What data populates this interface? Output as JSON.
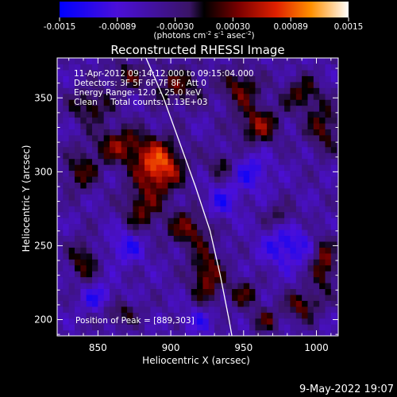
{
  "chart_data": {
    "type": "heatmap",
    "title": "Reconstructed RHESSI Image",
    "xlabel": "Heliocentric X (arcsec)",
    "ylabel": "Heliocentric Y (arcsec)",
    "xlim": [
      822,
      1015
    ],
    "ylim": [
      189,
      377
    ],
    "x_ticks": [
      850,
      900,
      950,
      1000
    ],
    "y_ticks": [
      200,
      250,
      300,
      350
    ],
    "colorbar": {
      "ticks": [
        "-0.0015",
        "-0.00089",
        "-0.00030",
        "0.00030",
        "0.00089",
        "0.0015"
      ],
      "range": [
        -0.0015,
        0.0015
      ],
      "units_label": "(photons cm",
      "units_exp1": "-2",
      "units_mid1": " s",
      "units_exp2": "-1",
      "units_mid2": " asec",
      "units_exp3": "-2",
      "units_end": ")"
    },
    "info_lines": [
      "11-Apr-2012 09:14:12.000 to 09:15:04.000",
      "Detectors: 3F 5F 6F 7F 8F, Att 0",
      "Energy Range: 12.0 - 25.0 keV",
      "Clean     Total counts: 1.13E+03"
    ],
    "peak_label": "Position of Peak = [889,303]",
    "peak": [
      889,
      303
    ],
    "limb": [
      [
        883,
        377
      ],
      [
        895,
        350
      ],
      [
        906,
        320
      ],
      [
        917,
        290
      ],
      [
        927,
        260
      ],
      [
        934,
        230
      ],
      [
        940,
        200
      ],
      [
        942,
        189
      ]
    ],
    "sources": [
      {
        "x": 892,
        "y": 304,
        "sx": 11,
        "sy": 12,
        "amp": 0.00145
      },
      {
        "x": 865,
        "y": 318,
        "sx": 13,
        "sy": 9,
        "amp": 0.00085
      },
      {
        "x": 880,
        "y": 275,
        "sx": 9,
        "sy": 11,
        "amp": 0.00075
      },
      {
        "x": 912,
        "y": 262,
        "sx": 10,
        "sy": 9,
        "amp": 0.0008
      },
      {
        "x": 925,
        "y": 230,
        "sx": 8,
        "sy": 14,
        "amp": 0.0009
      },
      {
        "x": 838,
        "y": 300,
        "sx": 8,
        "sy": 9,
        "amp": 0.0007
      },
      {
        "x": 845,
        "y": 345,
        "sx": 10,
        "sy": 8,
        "amp": 0.0007
      },
      {
        "x": 905,
        "y": 358,
        "sx": 12,
        "sy": 9,
        "amp": 0.0007
      },
      {
        "x": 960,
        "y": 332,
        "sx": 10,
        "sy": 9,
        "amp": 0.0009
      },
      {
        "x": 948,
        "y": 357,
        "sx": 9,
        "sy": 9,
        "amp": 0.0008
      },
      {
        "x": 990,
        "y": 353,
        "sx": 9,
        "sy": 8,
        "amp": 0.0007
      },
      {
        "x": 1005,
        "y": 330,
        "sx": 8,
        "sy": 11,
        "amp": 0.00075
      },
      {
        "x": 1005,
        "y": 238,
        "sx": 6,
        "sy": 13,
        "amp": 0.0009
      },
      {
        "x": 990,
        "y": 210,
        "sx": 8,
        "sy": 7,
        "amp": 0.0008
      },
      {
        "x": 965,
        "y": 200,
        "sx": 7,
        "sy": 6,
        "amp": 0.0006
      },
      {
        "x": 950,
        "y": 218,
        "sx": 7,
        "sy": 7,
        "amp": 0.00065
      },
      {
        "x": 840,
        "y": 240,
        "sx": 7,
        "sy": 10,
        "amp": 0.0007
      },
      {
        "x": 865,
        "y": 205,
        "sx": 9,
        "sy": 6,
        "amp": 0.0006
      },
      {
        "x": 935,
        "y": 305,
        "sx": 7,
        "sy": 7,
        "amp": 0.00055
      },
      {
        "x": 975,
        "y": 270,
        "sx": 8,
        "sy": 6,
        "amp": 0.0005
      },
      {
        "x": 870,
        "y": 365,
        "sx": 9,
        "sy": 7,
        "amp": 0.0006
      },
      {
        "x": 935,
        "y": 280,
        "sx": 8,
        "sy": 8,
        "amp": -0.00055
      },
      {
        "x": 870,
        "y": 250,
        "sx": 9,
        "sy": 8,
        "amp": -0.0006
      },
      {
        "x": 980,
        "y": 250,
        "sx": 12,
        "sy": 10,
        "amp": -0.0007
      },
      {
        "x": 850,
        "y": 215,
        "sx": 8,
        "sy": 7,
        "amp": -0.0006
      },
      {
        "x": 920,
        "y": 200,
        "sx": 8,
        "sy": 7,
        "amp": -0.0005
      },
      {
        "x": 955,
        "y": 300,
        "sx": 9,
        "sy": 9,
        "amp": -0.0006
      }
    ]
  },
  "timestamp": "9-May-2022 19:07"
}
